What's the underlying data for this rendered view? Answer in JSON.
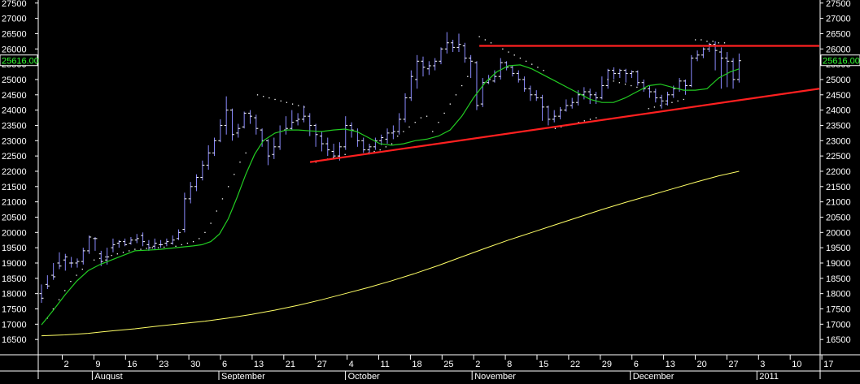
{
  "chart_data": {
    "type": "candlestick",
    "y_ticks": [
      "27500",
      "27000",
      "26500",
      "26000",
      "25500",
      "25000",
      "24500",
      "24000",
      "23500",
      "23000",
      "22500",
      "22000",
      "21500",
      "21000",
      "20500",
      "20000",
      "19500",
      "19000",
      "18500",
      "18000",
      "17500",
      "17000",
      "16500"
    ],
    "ylim": [
      16000,
      27600
    ],
    "last_price": 25616,
    "last_price_label": "25616.00",
    "date_ticks": [
      "2",
      "9",
      "16",
      "23",
      "30",
      "6",
      "13",
      "21",
      "27",
      "4",
      "11",
      "18",
      "25",
      "2",
      "8",
      "15",
      "22",
      "29",
      "6",
      "13",
      "20",
      "27",
      "3",
      "10",
      "17"
    ],
    "month_labels": [
      "August",
      "September",
      "October",
      "November",
      "December",
      "2011"
    ],
    "colors": {
      "background": "#000000",
      "bars": "#8a8aff",
      "ma_short": "#22cc22",
      "ma_long": "#ffff66",
      "trendline": "#ff2020",
      "sar_dots": "#ffffff",
      "price_box_text": "#33ff33",
      "axis": "#ffffff"
    },
    "ohlc": [
      [
        18000,
        17850,
        18300,
        17700
      ],
      [
        18300,
        18250,
        18600,
        18150
      ],
      [
        18600,
        18550,
        19000,
        18450
      ],
      [
        19000,
        18900,
        19350,
        18800
      ],
      [
        19100,
        19200,
        19300,
        18750
      ],
      [
        19000,
        19000,
        19200,
        18850
      ],
      [
        19000,
        19050,
        19150,
        18850
      ],
      [
        19050,
        19400,
        19500,
        18950
      ],
      [
        19400,
        19850,
        19900,
        19300
      ],
      [
        19800,
        19800,
        19850,
        19400
      ],
      [
        19300,
        19050,
        19400,
        18900
      ],
      [
        19100,
        19200,
        19500,
        18950
      ],
      [
        19500,
        19600,
        19800,
        19350
      ],
      [
        19650,
        19700,
        19750,
        19500
      ],
      [
        19700,
        19600,
        19800,
        19550
      ],
      [
        19650,
        19750,
        19850,
        19600
      ],
      [
        19750,
        19800,
        19950,
        19650
      ],
      [
        19900,
        19700,
        20000,
        19550
      ],
      [
        19600,
        19500,
        19750,
        19400
      ],
      [
        19550,
        19650,
        19800,
        19450
      ],
      [
        19600,
        19600,
        19750,
        19500
      ],
      [
        19650,
        19700,
        19800,
        19550
      ],
      [
        19650,
        19750,
        19900,
        19600
      ],
      [
        19800,
        20000,
        20100,
        19750
      ],
      [
        20100,
        21100,
        21300,
        20000
      ],
      [
        21100,
        21500,
        21650,
        20950
      ],
      [
        21500,
        21800,
        21900,
        21350
      ],
      [
        21800,
        22200,
        22350,
        21700
      ],
      [
        22200,
        22600,
        22850,
        22050
      ],
      [
        22600,
        23000,
        23100,
        22500
      ],
      [
        23000,
        23500,
        23700,
        22950
      ],
      [
        23500,
        24000,
        24450,
        23200
      ],
      [
        24000,
        23200,
        24050,
        23000
      ],
      [
        23250,
        23400,
        23550,
        23100
      ],
      [
        23450,
        23900,
        23950,
        23400
      ],
      [
        23900,
        23800,
        24000,
        23550
      ],
      [
        23750,
        23400,
        23850,
        23200
      ],
      [
        23350,
        23000,
        23400,
        22800
      ],
      [
        23000,
        22500,
        23050,
        22200
      ],
      [
        22550,
        22800,
        23100,
        22400
      ],
      [
        22800,
        23300,
        23500,
        22700
      ],
      [
        23350,
        23400,
        23800,
        23200
      ],
      [
        23400,
        23600,
        24000,
        23350
      ],
      [
        23650,
        23700,
        23900,
        23500
      ],
      [
        23700,
        23800,
        24150,
        23600
      ],
      [
        23800,
        23500,
        23900,
        23150
      ],
      [
        23500,
        23200,
        23550,
        22800
      ],
      [
        23150,
        22900,
        23300,
        22650
      ],
      [
        22900,
        22700,
        23100,
        22500
      ],
      [
        22650,
        22500,
        22900,
        22400
      ],
      [
        22500,
        22800,
        22950,
        22350
      ],
      [
        22800,
        23500,
        23800,
        22700
      ],
      [
        23500,
        23350,
        23600,
        23100
      ],
      [
        23300,
        23000,
        23400,
        22800
      ],
      [
        23000,
        22700,
        23100,
        22600
      ],
      [
        22700,
        22800,
        22900,
        22550
      ],
      [
        22800,
        23000,
        23100,
        22700
      ],
      [
        23000,
        23100,
        23200,
        22850
      ],
      [
        23050,
        23250,
        23400,
        22900
      ],
      [
        23250,
        23300,
        23500,
        23050
      ],
      [
        23300,
        23700,
        23900,
        23200
      ],
      [
        23700,
        24400,
        24550,
        23600
      ],
      [
        24400,
        25100,
        25300,
        24300
      ],
      [
        25000,
        25600,
        25800,
        24700
      ],
      [
        25600,
        25400,
        25750,
        25100
      ],
      [
        25350,
        25450,
        25600,
        25150
      ],
      [
        25450,
        25600,
        25700,
        25300
      ],
      [
        25600,
        26000,
        26050,
        25500
      ],
      [
        26000,
        26200,
        26550,
        25850
      ],
      [
        26200,
        26050,
        26300,
        25900
      ],
      [
        26050,
        26150,
        26500,
        25900
      ],
      [
        26100,
        25700,
        26200,
        25550
      ],
      [
        25700,
        25600,
        25800,
        25050
      ],
      [
        25550,
        24150,
        25600,
        24000
      ],
      [
        24200,
        24900,
        25050,
        24100
      ],
      [
        24900,
        25000,
        25150,
        24850
      ],
      [
        24950,
        25100,
        25300,
        24900
      ],
      [
        25100,
        25550,
        25700,
        25000
      ],
      [
        25550,
        25400,
        25600,
        25300
      ],
      [
        25400,
        25200,
        25450,
        25100
      ],
      [
        25200,
        25000,
        25300,
        24900
      ],
      [
        25000,
        24700,
        25100,
        24600
      ],
      [
        24700,
        24500,
        24800,
        24300
      ],
      [
        24500,
        24400,
        24650,
        24300
      ],
      [
        24400,
        24100,
        24500,
        23650
      ],
      [
        24100,
        23700,
        24150,
        23500
      ],
      [
        23700,
        23800,
        24000,
        23600
      ],
      [
        23800,
        24000,
        24100,
        23700
      ],
      [
        24000,
        24150,
        24350,
        23950
      ],
      [
        24150,
        24250,
        24400,
        24050
      ],
      [
        24250,
        24500,
        24650,
        24150
      ],
      [
        24500,
        24600,
        24750,
        24350
      ],
      [
        24600,
        24500,
        24700,
        24200
      ],
      [
        24500,
        24400,
        24600,
        24200
      ],
      [
        24400,
        24800,
        25100,
        24350
      ],
      [
        24800,
        25300,
        25350,
        24700
      ],
      [
        25300,
        25200,
        25400,
        25000
      ],
      [
        25200,
        25300,
        25350,
        25050
      ],
      [
        25300,
        25200,
        25350,
        24900
      ],
      [
        25200,
        25250,
        25300,
        25050
      ],
      [
        25250,
        24900,
        25300,
        24800
      ],
      [
        24900,
        24700,
        25000,
        24600
      ],
      [
        24700,
        24600,
        24800,
        24400
      ],
      [
        24600,
        24400,
        24700,
        24250
      ],
      [
        24400,
        24300,
        24500,
        24050
      ],
      [
        24300,
        24500,
        24600,
        24150
      ],
      [
        24500,
        24700,
        24800,
        24400
      ],
      [
        24700,
        24950,
        25050,
        24600
      ],
      [
        24950,
        24800,
        25000,
        24500
      ],
      [
        24800,
        25700,
        25800,
        24750
      ],
      [
        25700,
        25800,
        25950,
        25600
      ],
      [
        25800,
        26000,
        26050,
        25700
      ],
      [
        26000,
        26150,
        26200,
        25900
      ],
      [
        26150,
        25950,
        26250,
        25300
      ],
      [
        25900,
        25700,
        26050,
        24700
      ],
      [
        25700,
        25600,
        25900,
        24750
      ],
      [
        25600,
        25000,
        25700,
        24700
      ],
      [
        25000,
        25616,
        25850,
        24900
      ]
    ],
    "ma_short": [
      [
        0,
        16980
      ],
      [
        4,
        17450
      ],
      [
        8,
        17950
      ],
      [
        12,
        18400
      ],
      [
        16,
        18750
      ],
      [
        20,
        18950
      ],
      [
        24,
        19100
      ],
      [
        28,
        19250
      ],
      [
        32,
        19400
      ],
      [
        36,
        19420
      ],
      [
        40,
        19440
      ],
      [
        44,
        19480
      ],
      [
        48,
        19520
      ],
      [
        52,
        19560
      ],
      [
        55,
        19600
      ],
      [
        58,
        19700
      ],
      [
        61,
        19950
      ],
      [
        64,
        20450
      ],
      [
        67,
        21150
      ],
      [
        70,
        21900
      ],
      [
        73,
        22550
      ],
      [
        76,
        23000
      ],
      [
        80,
        23250
      ],
      [
        84,
        23350
      ],
      [
        88,
        23350
      ],
      [
        92,
        23320
      ],
      [
        96,
        23300
      ],
      [
        100,
        23350
      ],
      [
        104,
        23380
      ],
      [
        108,
        23300
      ],
      [
        112,
        23100
      ],
      [
        116,
        22900
      ],
      [
        120,
        22850
      ],
      [
        124,
        22900
      ],
      [
        128,
        23000
      ],
      [
        132,
        23050
      ],
      [
        136,
        23150
      ],
      [
        140,
        23350
      ],
      [
        144,
        23800
      ],
      [
        148,
        24400
      ],
      [
        152,
        24900
      ],
      [
        156,
        25250
      ],
      [
        160,
        25450
      ],
      [
        164,
        25480
      ],
      [
        168,
        25350
      ],
      [
        172,
        25150
      ],
      [
        176,
        24950
      ],
      [
        180,
        24750
      ],
      [
        184,
        24550
      ],
      [
        188,
        24350
      ],
      [
        192,
        24250
      ],
      [
        196,
        24250
      ],
      [
        200,
        24400
      ],
      [
        204,
        24600
      ],
      [
        208,
        24800
      ],
      [
        212,
        24850
      ],
      [
        216,
        24750
      ],
      [
        220,
        24650
      ],
      [
        224,
        24650
      ],
      [
        228,
        24700
      ],
      [
        232,
        25050
      ],
      [
        236,
        25250
      ],
      [
        239,
        25350
      ]
    ],
    "ma_long": [
      [
        0,
        16620
      ],
      [
        8,
        16650
      ],
      [
        16,
        16700
      ],
      [
        24,
        16780
      ],
      [
        32,
        16850
      ],
      [
        40,
        16940
      ],
      [
        48,
        17020
      ],
      [
        56,
        17100
      ],
      [
        64,
        17200
      ],
      [
        72,
        17320
      ],
      [
        80,
        17460
      ],
      [
        88,
        17620
      ],
      [
        96,
        17800
      ],
      [
        104,
        18000
      ],
      [
        112,
        18200
      ],
      [
        120,
        18420
      ],
      [
        128,
        18660
      ],
      [
        136,
        18920
      ],
      [
        144,
        19200
      ],
      [
        152,
        19480
      ],
      [
        160,
        19750
      ],
      [
        168,
        20000
      ],
      [
        176,
        20250
      ],
      [
        184,
        20500
      ],
      [
        192,
        20750
      ],
      [
        200,
        20980
      ],
      [
        208,
        21200
      ],
      [
        216,
        21420
      ],
      [
        224,
        21640
      ],
      [
        232,
        21850
      ],
      [
        239,
        22000
      ]
    ],
    "sar": [
      [
        2,
        17200
      ],
      [
        4,
        17500
      ],
      [
        6,
        17800
      ],
      [
        8,
        18100
      ],
      [
        10,
        18400
      ],
      [
        12,
        18600
      ],
      [
        14,
        18800
      ],
      [
        18,
        19100
      ],
      [
        20,
        19150
      ],
      [
        22,
        19200
      ],
      [
        24,
        19250
      ],
      [
        26,
        19300
      ],
      [
        28,
        19350
      ],
      [
        30,
        19400
      ],
      [
        32,
        19450
      ],
      [
        34,
        19450
      ],
      [
        36,
        19480
      ],
      [
        38,
        19500
      ],
      [
        40,
        19500
      ],
      [
        42,
        19520
      ],
      [
        46,
        19550
      ],
      [
        48,
        19600
      ],
      [
        50,
        19650
      ],
      [
        52,
        19700
      ],
      [
        54,
        19800
      ],
      [
        56,
        20000
      ],
      [
        58,
        20300
      ],
      [
        60,
        20700
      ],
      [
        62,
        21100
      ],
      [
        64,
        21500
      ],
      [
        66,
        21900
      ],
      [
        68,
        22300
      ],
      [
        70,
        22600
      ],
      [
        74,
        24500
      ],
      [
        76,
        24450
      ],
      [
        78,
        24400
      ],
      [
        80,
        24350
      ],
      [
        82,
        24300
      ],
      [
        84,
        24250
      ],
      [
        86,
        24200
      ],
      [
        88,
        24150
      ],
      [
        90,
        24100
      ],
      [
        94,
        22300
      ],
      [
        96,
        22350
      ],
      [
        98,
        22400
      ],
      [
        100,
        22450
      ],
      [
        102,
        22500
      ],
      [
        104,
        22550
      ],
      [
        110,
        22550
      ],
      [
        112,
        22600
      ],
      [
        114,
        22650
      ],
      [
        116,
        22700
      ],
      [
        118,
        22800
      ],
      [
        120,
        22900
      ],
      [
        122,
        23150
      ],
      [
        124,
        23300
      ],
      [
        126,
        23450
      ],
      [
        128,
        23600
      ],
      [
        130,
        23750
      ],
      [
        132,
        23800
      ],
      [
        134,
        23300
      ],
      [
        136,
        23600
      ],
      [
        138,
        23900
      ],
      [
        140,
        24200
      ],
      [
        142,
        24500
      ],
      [
        144,
        24800
      ],
      [
        146,
        25100
      ],
      [
        150,
        26400
      ],
      [
        152,
        26300
      ],
      [
        154,
        26200
      ],
      [
        156,
        26100
      ],
      [
        158,
        26000
      ],
      [
        160,
        25900
      ],
      [
        162,
        25800
      ],
      [
        164,
        25700
      ],
      [
        166,
        25600
      ],
      [
        168,
        25500
      ],
      [
        170,
        25400
      ],
      [
        172,
        25300
      ],
      [
        176,
        23400
      ],
      [
        178,
        23450
      ],
      [
        180,
        23500
      ],
      [
        182,
        23550
      ],
      [
        184,
        23600
      ],
      [
        186,
        23650
      ],
      [
        188,
        23700
      ],
      [
        190,
        23750
      ],
      [
        194,
        25000
      ],
      [
        196,
        24950
      ],
      [
        198,
        24900
      ],
      [
        200,
        24850
      ],
      [
        202,
        24800
      ],
      [
        204,
        24750
      ],
      [
        208,
        24050
      ],
      [
        210,
        24100
      ],
      [
        212,
        24150
      ],
      [
        214,
        24200
      ],
      [
        216,
        24250
      ],
      [
        218,
        24300
      ],
      [
        220,
        24350
      ],
      [
        224,
        26300
      ],
      [
        226,
        26300
      ],
      [
        228,
        26250
      ],
      [
        230,
        26250
      ],
      [
        232,
        26200
      ],
      [
        234,
        26200
      ]
    ],
    "trendlines": [
      {
        "from": [
          92,
          22300
        ],
        "to": [
          239,
          24700
        ]
      },
      {
        "from": [
          150,
          26100
        ],
        "to": [
          239,
          26100
        ]
      }
    ]
  }
}
